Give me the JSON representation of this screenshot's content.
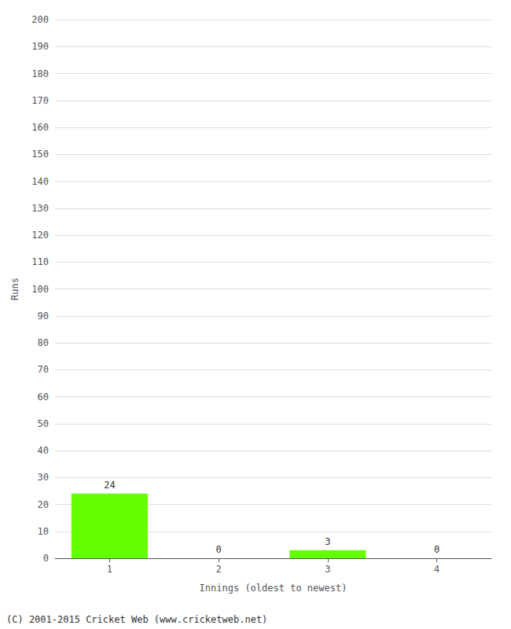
{
  "chart_data": {
    "type": "bar",
    "categories": [
      "1",
      "2",
      "3",
      "4"
    ],
    "values": [
      24,
      0,
      3,
      0
    ],
    "color": "#66ff00",
    "xlabel": "Innings (oldest to newest)",
    "ylabel": "Runs",
    "ylim": [
      0,
      200
    ],
    "yticks": [
      0,
      10,
      20,
      30,
      40,
      50,
      60,
      70,
      80,
      90,
      100,
      110,
      120,
      130,
      140,
      150,
      160,
      170,
      180,
      190,
      200
    ],
    "grid": true,
    "data_labels": true,
    "annotations": [
      "(C) 2001-2015 Cricket Web (www.cricketweb.net)"
    ]
  }
}
